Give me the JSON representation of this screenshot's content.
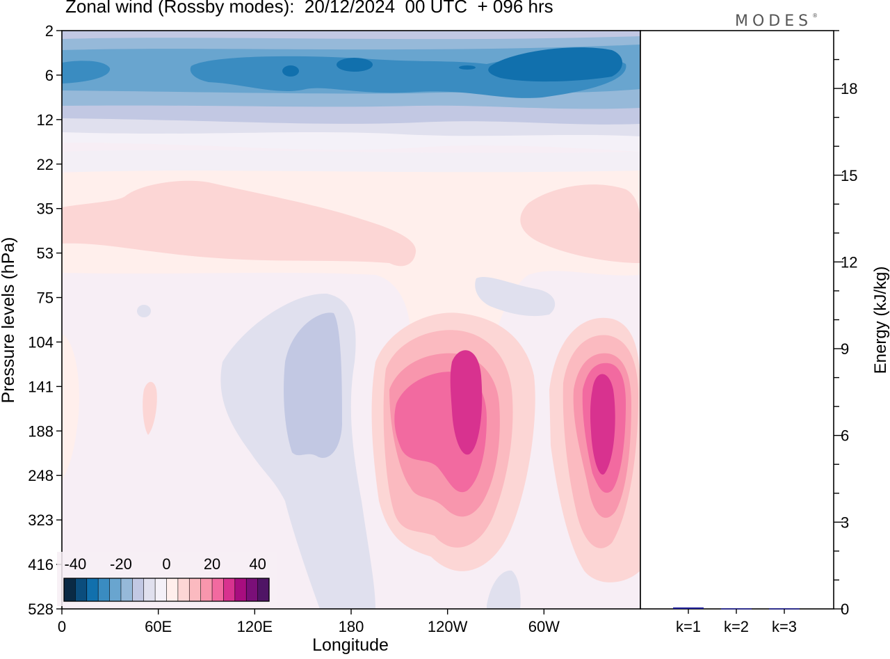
{
  "title": "Zonal wind (Rossby modes):  20/12/2024  00 UTC  + 096 hrs",
  "logo": "MODES",
  "logo_mark": "®",
  "colors": {
    "neg_scale": [
      "#0a2a45",
      "#0b4d7d",
      "#1170ad",
      "#3a8cc1",
      "#69a5cf",
      "#96b9d9",
      "#c2c8e3",
      "#e0e0ee",
      "#f4f1f8"
    ],
    "pos_scale": [
      "#ffefec",
      "#fcd6d5",
      "#fbbac0",
      "#f896ad",
      "#f26aa0",
      "#d8328f",
      "#a80d7f",
      "#7a0f78",
      "#4f1565"
    ],
    "background": "#f7eef5"
  },
  "chart_data": [
    {
      "type": "heatmap",
      "title": "Zonal wind (Rossby modes):  20/12/2024  00 UTC  + 096 hrs",
      "xlabel": "Longitude",
      "ylabel": "Pressure levels (hPa)",
      "x_ticks": [
        "0",
        "60E",
        "120E",
        "180",
        "120W",
        "60W"
      ],
      "y_ticks": [
        "2",
        "6",
        "12",
        "22",
        "35",
        "53",
        "75",
        "104",
        "141",
        "188",
        "248",
        "323",
        "416",
        "528"
      ],
      "y_inverted": true,
      "colorbar": {
        "tick_labels": [
          "-40",
          "-20",
          "0",
          "20",
          "40"
        ],
        "range": [
          -45,
          45
        ],
        "step": 5
      },
      "features": [
        {
          "kind": "easterly band",
          "lon_range": [
            0,
            360
          ],
          "level_range": [
            2,
            16
          ],
          "value": -25
        },
        {
          "kind": "easterly core",
          "lon_center": 300,
          "level_center": 6,
          "value": -40
        },
        {
          "kind": "westerly layer",
          "lon_range": [
            0,
            220
          ],
          "level_range": [
            25,
            60
          ],
          "value": 5
        },
        {
          "kind": "westerly layer",
          "lon_range": [
            285,
            360
          ],
          "level_range": [
            25,
            60
          ],
          "value": 5
        },
        {
          "kind": "easterly column",
          "lon_range": [
            95,
            180
          ],
          "level_range": [
            90,
            528
          ],
          "value": -5
        },
        {
          "kind": "westerly jet",
          "lon_center": 245,
          "level_center": 165,
          "value": 35
        },
        {
          "kind": "westerly jet",
          "lon_center": 337,
          "level_center": 175,
          "value": 35
        }
      ]
    },
    {
      "type": "bar",
      "ylabel": "Energy (kJ/kg)",
      "y_ticks": [
        "0",
        "3",
        "6",
        "9",
        "12",
        "15",
        "18"
      ],
      "ylim": [
        0,
        20
      ],
      "categories": [
        "k=1",
        "k=2",
        "k=3"
      ],
      "values": [
        0.05,
        0.02,
        0.02
      ],
      "bar_color": "#1e1e96"
    }
  ]
}
